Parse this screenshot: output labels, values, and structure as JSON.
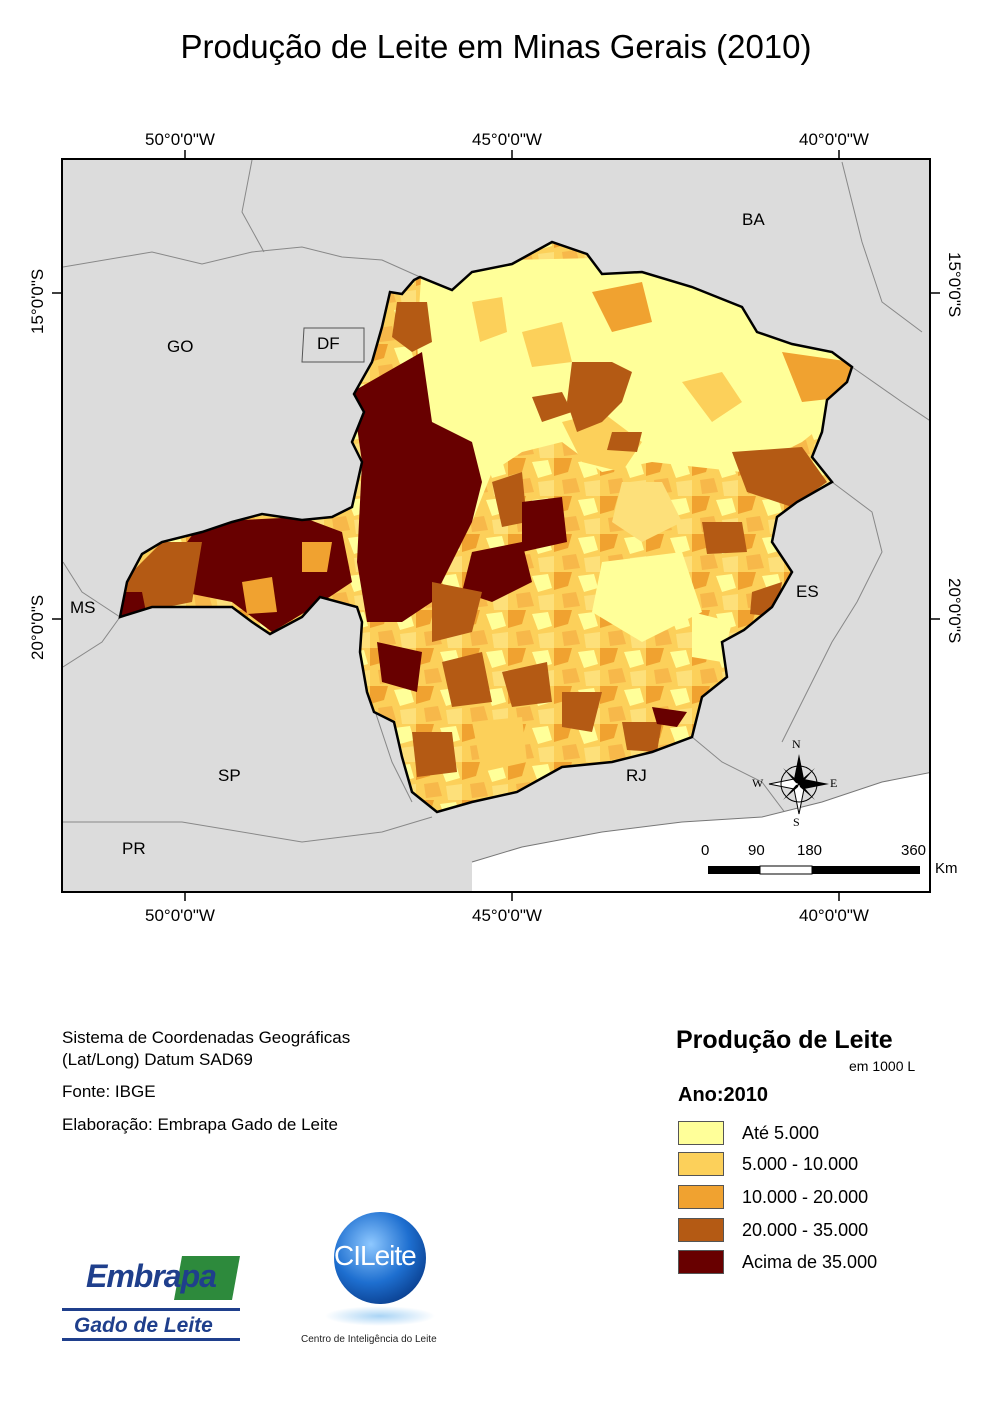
{
  "title": "Produção de Leite em Minas Gerais (2010)",
  "graticule": {
    "top": [
      "50°0'0\"W",
      "45°0'0\"W",
      "40°0'0\"W"
    ],
    "bottom": [
      "50°0'0\"W",
      "45°0'0\"W",
      "40°0'0\"W"
    ],
    "left": [
      "15°0'0\"S",
      "20°0'0\"S"
    ],
    "right": [
      "15°0'0\"S",
      "20°0'0\"S"
    ]
  },
  "states": [
    "BA",
    "GO",
    "DF",
    "MS",
    "ES",
    "SP",
    "RJ",
    "PR"
  ],
  "compass": {
    "n": "N",
    "s": "S",
    "e": "E",
    "w": "W"
  },
  "scale_bar": {
    "ticks": [
      "0",
      "90",
      "180",
      "360"
    ],
    "unit": "Km"
  },
  "info": {
    "line1": "Sistema de Coordenadas Geográficas",
    "line2": "(Lat/Long) Datum SAD69",
    "source": "Fonte: IBGE",
    "credit": "Elaboração: Embrapa Gado de Leite"
  },
  "legend": {
    "title": "Produção de Leite",
    "subtitle": "em 1000 L",
    "year": "Ano:2010",
    "classes": [
      {
        "label": "Até 5.000",
        "color": "#ffff99"
      },
      {
        "label": "5.000 - 10.000",
        "color": "#fcd05a"
      },
      {
        "label": "10.000 - 20.000",
        "color": "#f0a230"
      },
      {
        "label": "20.000 - 35.000",
        "color": "#b45a14"
      },
      {
        "label": "Acima de 35.000",
        "color": "#680000"
      }
    ]
  },
  "logos": {
    "embrapa_name": "Embrapa",
    "embrapa_sub": "Gado de Leite",
    "cileite_name": "CILeite",
    "cileite_sub": "Centro de Inteligência do Leite"
  }
}
